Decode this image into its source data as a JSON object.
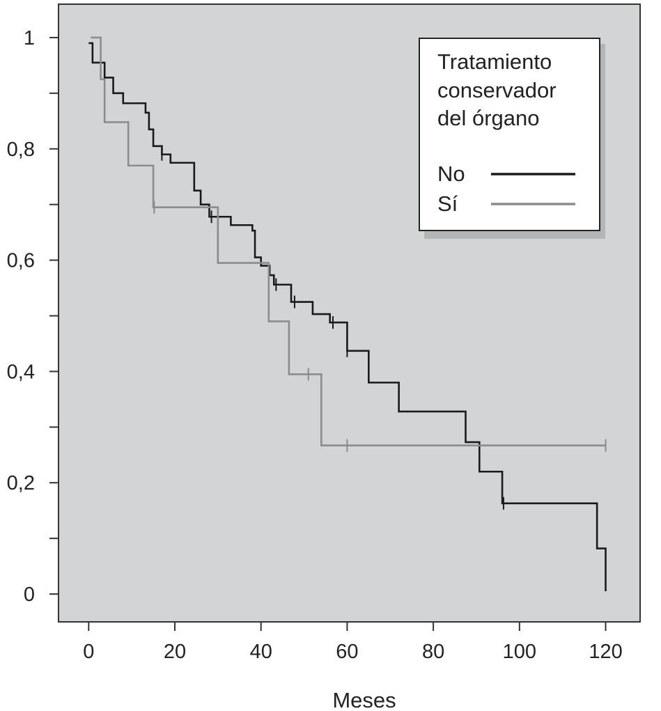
{
  "chart_data": {
    "type": "line",
    "step": true,
    "xlabel": "Meses",
    "ylabel": "",
    "xlim": [
      -7,
      128
    ],
    "ylim": [
      -0.05,
      1.06
    ],
    "x_ticks": [
      0,
      20,
      40,
      60,
      80,
      100,
      120
    ],
    "x_tick_labels": [
      "0",
      "20",
      "40",
      "60",
      "80",
      "100",
      "120"
    ],
    "y_ticks": [
      0,
      0.2,
      0.4,
      0.6,
      0.8,
      1
    ],
    "y_tick_labels": [
      "0",
      "0,2",
      "0,4",
      "0,6",
      "0,8",
      "1"
    ],
    "y_minor_ticks": [
      0.1,
      0.3,
      0.5,
      0.7,
      0.9
    ],
    "grid": false,
    "background": "#d3d4d6",
    "legend": {
      "title_lines": [
        "Tratamiento",
        "conservador",
        "del órgano"
      ],
      "position": "top-right"
    },
    "series": [
      {
        "name": "No",
        "color": "#1a1a1a",
        "steps": [
          [
            0,
            0.99
          ],
          [
            0.9,
            0.955
          ],
          [
            3.7,
            0.928
          ],
          [
            5.7,
            0.9
          ],
          [
            8,
            0.882
          ],
          [
            13.2,
            0.865
          ],
          [
            14,
            0.835
          ],
          [
            15,
            0.805
          ],
          [
            17,
            0.79
          ],
          [
            19,
            0.775
          ],
          [
            24.5,
            0.725
          ],
          [
            26,
            0.7
          ],
          [
            28,
            0.678
          ],
          [
            33,
            0.663
          ],
          [
            38,
            0.653
          ],
          [
            38.6,
            0.605
          ],
          [
            40,
            0.59
          ],
          [
            42,
            0.573
          ],
          [
            43,
            0.556
          ],
          [
            47,
            0.525
          ],
          [
            52,
            0.503
          ],
          [
            56,
            0.488
          ],
          [
            60,
            0.437
          ],
          [
            65,
            0.38
          ],
          [
            72,
            0.328
          ],
          [
            87.5,
            0.273
          ],
          [
            90.7,
            0.22
          ],
          [
            96,
            0.163
          ],
          [
            118,
            0.082
          ],
          [
            120,
            0.005
          ]
        ],
        "censored": [
          [
            17,
            0.79
          ],
          [
            28.5,
            0.678
          ],
          [
            43.5,
            0.556
          ],
          [
            47.8,
            0.525
          ],
          [
            56.7,
            0.488
          ],
          [
            60,
            0.437
          ],
          [
            96.3,
            0.163
          ]
        ]
      },
      {
        "name": "Sí",
        "color": "#8c8c8c",
        "steps": [
          [
            0.5,
            1.0
          ],
          [
            2.8,
            0.925
          ],
          [
            3.7,
            0.848
          ],
          [
            9.2,
            0.77
          ],
          [
            15,
            0.695
          ],
          [
            30,
            0.595
          ],
          [
            41.8,
            0.49
          ],
          [
            46.5,
            0.395
          ],
          [
            54,
            0.267
          ],
          [
            120,
            0.267
          ]
        ],
        "censored": [
          [
            15.2,
            0.695
          ],
          [
            51,
            0.395
          ],
          [
            60,
            0.267
          ],
          [
            120,
            0.267
          ]
        ]
      }
    ]
  }
}
